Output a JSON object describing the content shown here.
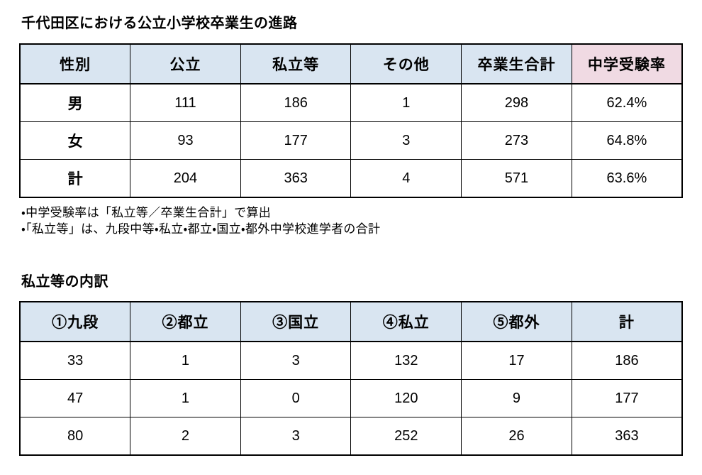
{
  "page": {
    "title1": "千代田区における公立小学校卒業生の進路",
    "title2": "私立等の内訳"
  },
  "colors": {
    "header_blue": "#d9e5f1",
    "header_pink": "#f0dae3",
    "border": "#000000",
    "background": "#ffffff"
  },
  "summary_table": {
    "headers": [
      "性別",
      "公立",
      "私立等",
      "その他",
      "卒業生合計",
      "中学受験率"
    ],
    "rows": [
      [
        "男",
        "111",
        "186",
        "1",
        "298",
        "62.4%"
      ],
      [
        "女",
        "93",
        "177",
        "3",
        "273",
        "64.8%"
      ],
      [
        "計",
        "204",
        "363",
        "4",
        "571",
        "63.6%"
      ]
    ]
  },
  "notes": [
    "・中学受験率は「私立等／卒業生合計」で算出",
    "・「私立等」は、九段中等・私立・都立・国立・都外中学校進学者の合計"
  ],
  "breakdown_table": {
    "headers": [
      "①九段",
      "②都立",
      "③国立",
      "④私立",
      "⑤都外",
      "計"
    ],
    "rows": [
      [
        "33",
        "1",
        "3",
        "132",
        "17",
        "186"
      ],
      [
        "47",
        "1",
        "0",
        "120",
        "9",
        "177"
      ],
      [
        "80",
        "2",
        "3",
        "252",
        "26",
        "363"
      ]
    ]
  }
}
